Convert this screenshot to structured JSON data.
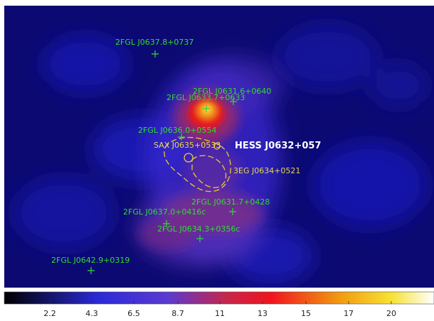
{
  "sources": {
    "fermi": [
      {
        "name": "2FGL J0637.8+0737"
      },
      {
        "name": "2FGL J0631.6+0640"
      },
      {
        "name": "2FGL J0633.7+0633"
      },
      {
        "name": "2FGL J0636.0+0554"
      },
      {
        "name": "2FGL J0631.7+0428"
      },
      {
        "name": "2FGL J0637.0+0416c"
      },
      {
        "name": "2FGL J0634.3+0356c"
      },
      {
        "name": "2FGL J0642.9+0319"
      }
    ],
    "other": [
      {
        "name": "SAX J0635+0533"
      },
      {
        "name": "3EG J0634+0521"
      }
    ],
    "hess": {
      "name": "HESS J0632+057"
    }
  },
  "colorbar": {
    "ticks": [
      "2.2",
      "4.3",
      "6.5",
      "8.7",
      "11",
      "13",
      "15",
      "17",
      "20"
    ]
  },
  "colors": {
    "background": "#0a0a66",
    "fermi_label": "#2fdc2f",
    "other_label": "#e8d84a",
    "hess_label": "#ffffff"
  }
}
